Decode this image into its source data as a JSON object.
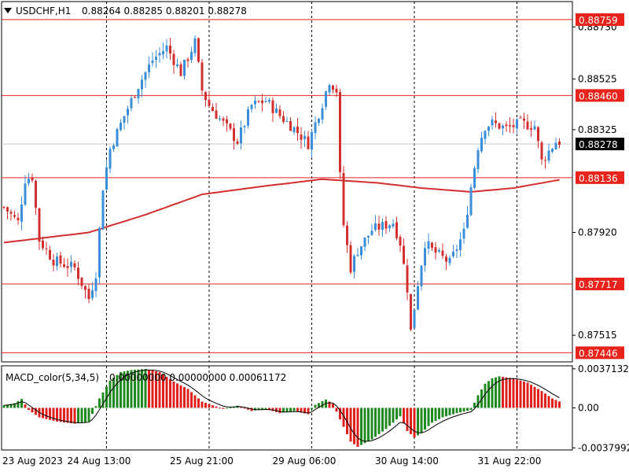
{
  "header": {
    "menu_icon": "triangle-down-icon",
    "symbol": "USDCHF,H1",
    "ohlc": "0.88264 0.88285 0.88201 0.88278"
  },
  "chart_data": {
    "type": "candlestick",
    "symbol": "USDCHF",
    "timeframe": "H1",
    "price_axis": {
      "ylim": [
        0.8741,
        0.8883
      ],
      "ticks": [
        "0.88730",
        "0.88525",
        "0.88325",
        "0.87920",
        "0.87515"
      ]
    },
    "time_axis": {
      "labels": [
        "23 Aug 2023",
        "24 Aug 13:00",
        "25 Aug 21:00",
        "29 Aug 06:00",
        "30 Aug 14:00",
        "31 Aug 22:00"
      ],
      "label_candle_index": [
        0,
        29,
        58,
        87,
        116,
        145
      ]
    },
    "current_price": "0.88278",
    "levels": [
      {
        "label": "0.88759",
        "value": 0.88759
      },
      {
        "label": "0.88460",
        "value": 0.8846
      },
      {
        "label": "0.88136",
        "value": 0.88136
      },
      {
        "label": "0.87717",
        "value": 0.87717
      },
      {
        "label": "0.87446",
        "value": 0.87446
      }
    ],
    "moving_average": [
      [
        0,
        0.8788
      ],
      [
        12,
        0.879
      ],
      [
        24,
        0.8792
      ],
      [
        40,
        0.8799
      ],
      [
        56,
        0.8807
      ],
      [
        72,
        0.881
      ],
      [
        90,
        0.8813
      ],
      [
        106,
        0.88115
      ],
      [
        118,
        0.88095
      ],
      [
        132,
        0.8808
      ],
      [
        144,
        0.88095
      ],
      [
        158,
        0.8813
      ]
    ],
    "price_path": [
      [
        0,
        0.8802
      ],
      [
        4,
        0.8796
      ],
      [
        6,
        0.8813
      ],
      [
        8,
        0.8814
      ],
      [
        10,
        0.8789
      ],
      [
        14,
        0.8781
      ],
      [
        18,
        0.8779
      ],
      [
        20,
        0.8778
      ],
      [
        24,
        0.8766
      ],
      [
        26,
        0.8776
      ],
      [
        28,
        0.881
      ],
      [
        30,
        0.8825
      ],
      [
        34,
        0.8838
      ],
      [
        38,
        0.885
      ],
      [
        42,
        0.886
      ],
      [
        46,
        0.8865
      ],
      [
        50,
        0.8855
      ],
      [
        54,
        0.8867
      ],
      [
        56,
        0.8848
      ],
      [
        58,
        0.8842
      ],
      [
        62,
        0.8835
      ],
      [
        66,
        0.8828
      ],
      [
        70,
        0.8842
      ],
      [
        74,
        0.8844
      ],
      [
        78,
        0.8838
      ],
      [
        82,
        0.8833
      ],
      [
        86,
        0.8827
      ],
      [
        90,
        0.8843
      ],
      [
        92,
        0.8852
      ],
      [
        94,
        0.8848
      ],
      [
        95,
        0.8814
      ],
      [
        96,
        0.8795
      ],
      [
        98,
        0.8778
      ],
      [
        100,
        0.8785
      ],
      [
        104,
        0.8793
      ],
      [
        108,
        0.8795
      ],
      [
        110,
        0.8796
      ],
      [
        112,
        0.8788
      ],
      [
        114,
        0.877
      ],
      [
        115,
        0.8753
      ],
      [
        117,
        0.8772
      ],
      [
        119,
        0.8788
      ],
      [
        121,
        0.8785
      ],
      [
        124,
        0.8782
      ],
      [
        126,
        0.878
      ],
      [
        128,
        0.8786
      ],
      [
        130,
        0.8792
      ],
      [
        132,
        0.881
      ],
      [
        134,
        0.8826
      ],
      [
        136,
        0.8834
      ],
      [
        138,
        0.8835
      ],
      [
        142,
        0.8833
      ],
      [
        146,
        0.8835
      ],
      [
        150,
        0.8834
      ],
      [
        152,
        0.882
      ],
      [
        154,
        0.8824
      ],
      [
        156,
        0.88278
      ]
    ],
    "indicator": {
      "name": "MACD_color(5,34,5)",
      "values_text": "0.00000000 0.00000000 0.00061172",
      "ylim": [
        -0.004,
        0.004
      ],
      "ticks": [
        "0.0037132",
        "0.00",
        "-0.0037992"
      ],
      "histogram_path": [
        [
          0,
          0.00025
        ],
        [
          3,
          0.00045
        ],
        [
          5,
          0.00085
        ],
        [
          7,
          -0.0002
        ],
        [
          10,
          -0.0009
        ],
        [
          15,
          -0.0013
        ],
        [
          20,
          -0.0015
        ],
        [
          24,
          -0.0013
        ],
        [
          27,
          0.0009
        ],
        [
          30,
          0.0026
        ],
        [
          33,
          0.0034
        ],
        [
          36,
          0.0036
        ],
        [
          40,
          0.0037
        ],
        [
          44,
          0.0034
        ],
        [
          48,
          0.0025
        ],
        [
          52,
          0.0018
        ],
        [
          56,
          0.0006
        ],
        [
          62,
          -0.0001
        ],
        [
          66,
          0.0002
        ],
        [
          70,
          -0.0003
        ],
        [
          74,
          -0.0001
        ],
        [
          78,
          -0.0005
        ],
        [
          82,
          -0.0003
        ],
        [
          86,
          -0.0006
        ],
        [
          88,
          0.0003
        ],
        [
          91,
          0.0008
        ],
        [
          93,
          0.0004
        ],
        [
          95,
          -0.0011
        ],
        [
          98,
          -0.0032
        ],
        [
          100,
          -0.0037
        ],
        [
          104,
          -0.003
        ],
        [
          108,
          -0.002
        ],
        [
          112,
          -0.0008
        ],
        [
          114,
          -0.0022
        ],
        [
          116,
          -0.0028
        ],
        [
          118,
          -0.0024
        ],
        [
          121,
          -0.0014
        ],
        [
          124,
          -0.0009
        ],
        [
          128,
          -0.0005
        ],
        [
          132,
          -0.0002
        ],
        [
          134,
          0.0012
        ],
        [
          136,
          0.0023
        ],
        [
          138,
          0.0028
        ],
        [
          140,
          0.003
        ],
        [
          144,
          0.0028
        ],
        [
          148,
          0.0024
        ],
        [
          152,
          0.0016
        ],
        [
          155,
          0.0009
        ],
        [
          157,
          0.00061
        ]
      ]
    },
    "colors": {
      "bull": "#3a8fd8",
      "bear": "#d32f2f",
      "ma": "#d32f2f",
      "level": "#e8231b",
      "hist_up": "#1f8a1f",
      "hist_down": "#e0201b",
      "signal": "#000000",
      "grid": "#000000",
      "current_tag": "#000000"
    }
  }
}
